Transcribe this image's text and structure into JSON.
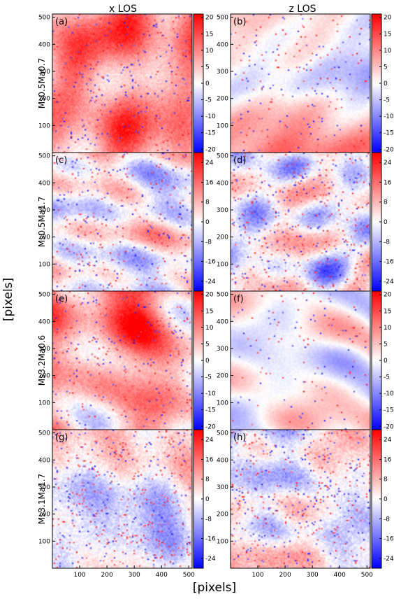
{
  "figure": {
    "xlabel": "[pixels]",
    "ylabel": "[pixels]",
    "column_titles": [
      "x LOS",
      "z LOS"
    ],
    "row_labels": [
      "Ms0.5Ma0.7",
      "Ms0.5Ma1.7",
      "Ms3.2Ma0.6",
      "Ms3.1Ma1.7"
    ],
    "colormap": {
      "low": "#0000ff",
      "mid": "#ffffff",
      "high": "#ff0000"
    }
  },
  "chart_data": [
    {
      "type": "heatmap",
      "panel": "(a)",
      "row": 0,
      "col": 0,
      "los": "x LOS",
      "simulation": "Ms0.5Ma0.7",
      "xlim": [
        0,
        512
      ],
      "ylim": [
        0,
        512
      ],
      "yticks": [
        100,
        200,
        300,
        400,
        500
      ],
      "colorbar": {
        "range": [
          -21,
          21
        ],
        "ticks": [
          20,
          15,
          10,
          5,
          0,
          -5,
          -10,
          -15,
          -20
        ]
      },
      "bias": 0.45,
      "scale": 0.09
    },
    {
      "type": "heatmap",
      "panel": "(b)",
      "row": 0,
      "col": 1,
      "los": "z LOS",
      "simulation": "Ms0.5Ma0.7",
      "xlim": [
        0,
        512
      ],
      "ylim": [
        0,
        512
      ],
      "yticks": [
        100,
        200,
        300,
        400,
        500
      ],
      "colorbar": {
        "range": [
          -21,
          21
        ],
        "ticks": [
          20,
          15,
          10,
          5,
          0,
          -5,
          -10,
          -15,
          -20
        ]
      },
      "bias": 0.05,
      "scale": 0.05
    },
    {
      "type": "heatmap",
      "panel": "(c)",
      "row": 1,
      "col": 0,
      "los": "x LOS",
      "simulation": "Ms0.5Ma1.7",
      "xlim": [
        0,
        512
      ],
      "ylim": [
        0,
        512
      ],
      "yticks": [
        100,
        200,
        300,
        400,
        500
      ],
      "colorbar": {
        "range": [
          -28,
          28
        ],
        "ticks": [
          24,
          16,
          8,
          0,
          -8,
          -16,
          -24
        ]
      },
      "bias": 0.05,
      "scale": 0.1
    },
    {
      "type": "heatmap",
      "panel": "(d)",
      "row": 1,
      "col": 1,
      "los": "z LOS",
      "simulation": "Ms0.5Ma1.7",
      "xlim": [
        0,
        512
      ],
      "ylim": [
        0,
        512
      ],
      "yticks": [
        100,
        200,
        300,
        400,
        500
      ],
      "colorbar": {
        "range": [
          -28,
          28
        ],
        "ticks": [
          24,
          16,
          8,
          0,
          -8,
          -16,
          -24
        ]
      },
      "bias": 0.0,
      "scale": 0.11
    },
    {
      "type": "heatmap",
      "panel": "(e)",
      "row": 2,
      "col": 0,
      "los": "x LOS",
      "simulation": "Ms3.2Ma0.6",
      "xlim": [
        0,
        512
      ],
      "ylim": [
        0,
        512
      ],
      "yticks": [
        100,
        200,
        300,
        400,
        500
      ],
      "colorbar": {
        "range": [
          -21,
          21
        ],
        "ticks": [
          20,
          15,
          10,
          5,
          0,
          -5,
          -10,
          -15,
          -20
        ]
      },
      "bias": 0.4,
      "scale": 0.09
    },
    {
      "type": "heatmap",
      "panel": "(f)",
      "row": 2,
      "col": 1,
      "los": "z LOS",
      "simulation": "Ms3.2Ma0.6",
      "xlim": [
        0,
        512
      ],
      "ylim": [
        0,
        512
      ],
      "yticks": [
        100,
        200,
        300,
        400,
        500
      ],
      "colorbar": {
        "range": [
          -21,
          21
        ],
        "ticks": [
          20,
          15,
          10,
          5,
          0,
          -5,
          -10,
          -15,
          -20
        ]
      },
      "bias": 0.02,
      "scale": 0.04
    },
    {
      "type": "heatmap",
      "panel": "(g)",
      "row": 3,
      "col": 0,
      "los": "x LOS",
      "simulation": "Ms3.1Ma1.7",
      "xlim": [
        0,
        512
      ],
      "ylim": [
        0,
        512
      ],
      "yticks": [
        100,
        200,
        300,
        400,
        500
      ],
      "xticks": [
        100,
        200,
        300,
        400,
        500
      ],
      "colorbar": {
        "range": [
          -28,
          28
        ],
        "ticks": [
          24,
          16,
          8,
          0,
          -8,
          -16,
          -24
        ]
      },
      "bias": 0.0,
      "scale": 0.12
    },
    {
      "type": "heatmap",
      "panel": "(h)",
      "row": 3,
      "col": 1,
      "los": "z LOS",
      "simulation": "Ms3.1Ma1.7",
      "xlim": [
        0,
        512
      ],
      "ylim": [
        0,
        512
      ],
      "yticks": [
        100,
        200,
        300,
        400,
        500
      ],
      "xticks": [
        100,
        200,
        300,
        400,
        500
      ],
      "colorbar": {
        "range": [
          -28,
          28
        ],
        "ticks": [
          24,
          16,
          8,
          0,
          -8,
          -16,
          -24
        ]
      },
      "bias": 0.0,
      "scale": 0.12
    }
  ]
}
